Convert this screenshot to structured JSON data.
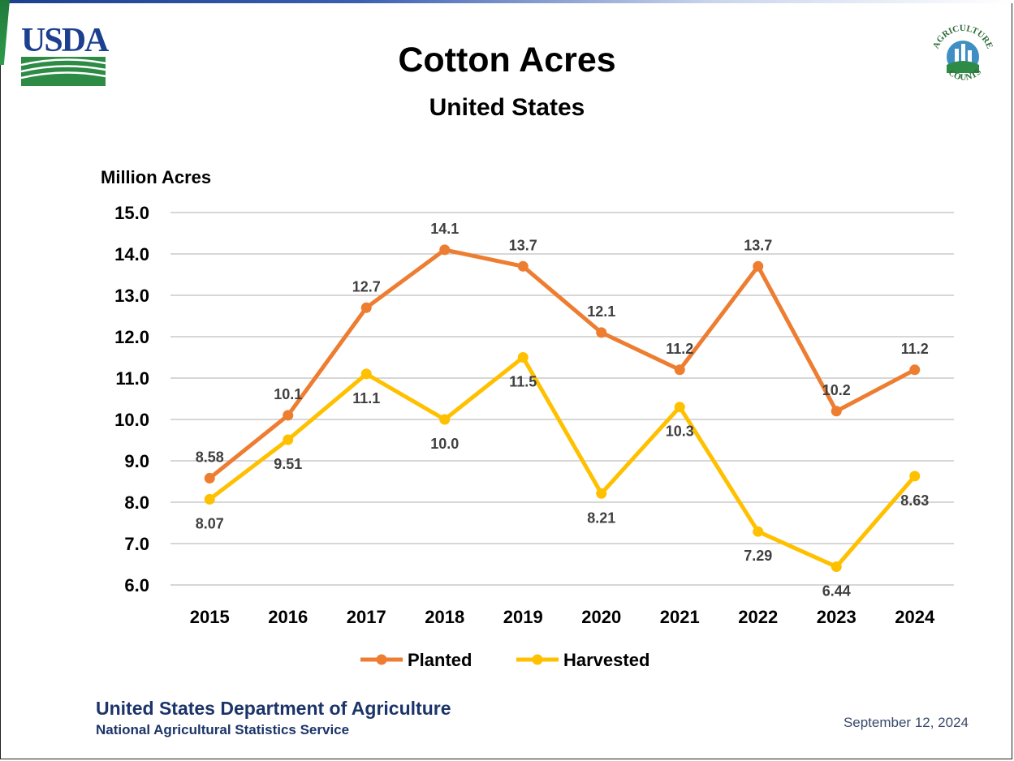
{
  "header": {
    "logo_text": "USDA",
    "seal_text_top": "AGRICULTURE",
    "seal_text_bottom": "COUNTS"
  },
  "colors": {
    "planted": "#ed7d31",
    "harvested": "#ffc000",
    "grid": "#bfbfbf",
    "usda_blue": "#1c3f8f",
    "usda_green": "#2e8b45"
  },
  "chart_data": {
    "type": "line",
    "title": "Cotton Acres",
    "subtitle": "United States",
    "ylabel": "Million Acres",
    "xlabel": "",
    "ylim": [
      6.0,
      15.0
    ],
    "yticks": [
      "15.0",
      "14.0",
      "13.0",
      "12.0",
      "11.0",
      "10.0",
      "9.0",
      "8.0",
      "7.0",
      "6.0"
    ],
    "categories": [
      "2015",
      "2016",
      "2017",
      "2018",
      "2019",
      "2020",
      "2021",
      "2022",
      "2023",
      "2024"
    ],
    "grid": true,
    "legend_position": "bottom",
    "series": [
      {
        "name": "Planted",
        "values": [
          8.58,
          10.1,
          12.7,
          14.1,
          13.7,
          12.1,
          11.2,
          13.7,
          10.2,
          11.2
        ],
        "labels": [
          "8.58",
          "10.1",
          "12.7",
          "14.1",
          "13.7",
          "12.1",
          "11.2",
          "13.7",
          "10.2",
          "11.2"
        ]
      },
      {
        "name": "Harvested",
        "values": [
          8.07,
          9.51,
          11.1,
          10.0,
          11.5,
          8.21,
          10.3,
          7.29,
          6.44,
          8.63
        ],
        "labels": [
          "8.07",
          "9.51",
          "11.1",
          "10.0",
          "11.5",
          "8.21",
          "10.3",
          "7.29",
          "6.44",
          "8.63"
        ]
      }
    ]
  },
  "footer": {
    "org": "United States Department of Agriculture",
    "agency": "National Agricultural Statistics Service",
    "date": "September 12, 2024"
  }
}
